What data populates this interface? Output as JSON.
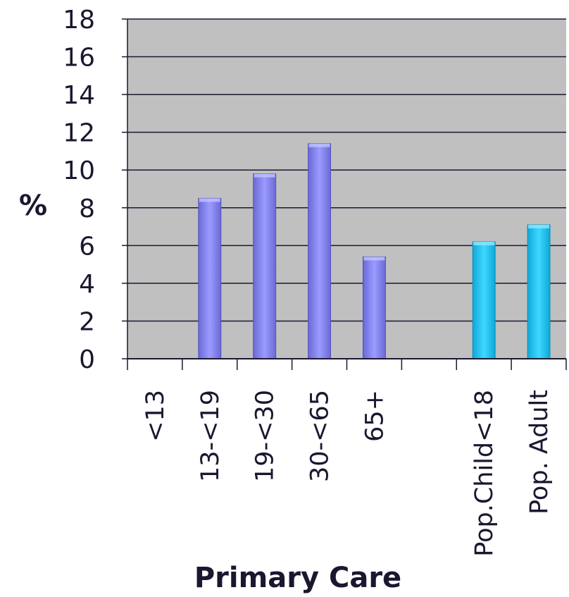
{
  "chart_data": {
    "type": "bar",
    "categories": [
      "<13",
      "13-<19",
      "19-<30",
      "30-<65",
      "65+",
      "",
      "Pop.Child<18",
      "Pop. Adult"
    ],
    "values": [
      null,
      8.5,
      9.8,
      11.4,
      5.4,
      null,
      6.2,
      7.1
    ],
    "bar_colors": [
      "#8585ef",
      "#8585ef",
      "#8585ef",
      "#8585ef",
      "#8585ef",
      "#8585ef",
      "#22c7f0",
      "#22c7f0"
    ],
    "ylim": [
      0,
      18
    ],
    "yticks": [
      0,
      2,
      4,
      6,
      8,
      10,
      12,
      14,
      16,
      18
    ],
    "ylabel": "%",
    "xlabel": "Primary Care",
    "grid": true,
    "plot_background": "#c0c0c0"
  }
}
